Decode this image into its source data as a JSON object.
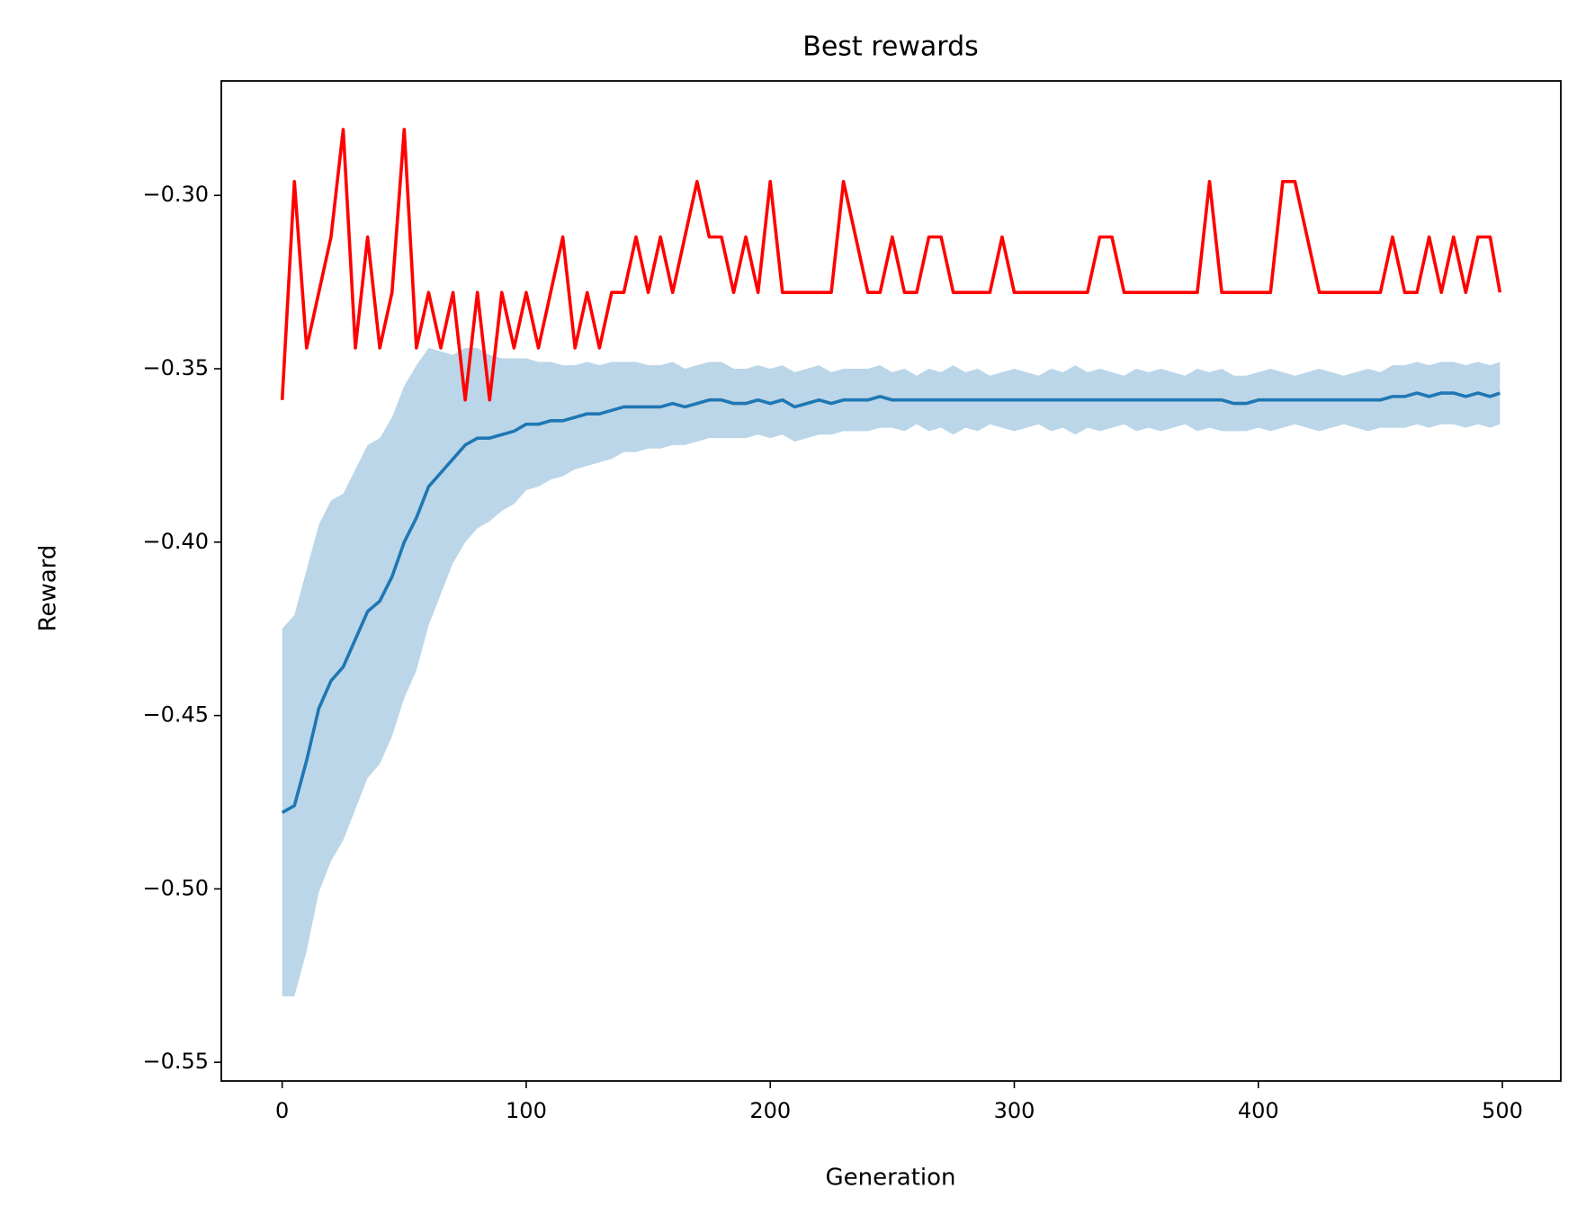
{
  "chart_data": {
    "type": "line",
    "title": "Best rewards",
    "x_label": "Generation",
    "y_label": "Reward",
    "xlim": [
      -24.95,
      523.95
    ],
    "ylim": [
      -0.5554,
      -0.267
    ],
    "xticks": [
      0,
      100,
      200,
      300,
      400,
      500
    ],
    "yticks": [
      {
        "value": -0.55,
        "label": "−0.55"
      },
      {
        "value": -0.5,
        "label": "−0.50"
      },
      {
        "value": -0.45,
        "label": "−0.45"
      },
      {
        "value": -0.4,
        "label": "−0.40"
      },
      {
        "value": -0.35,
        "label": "−0.35"
      },
      {
        "value": -0.3,
        "label": "−0.30"
      }
    ],
    "grid": false,
    "x": [
      0,
      5,
      10,
      15,
      20,
      25,
      30,
      35,
      40,
      45,
      50,
      55,
      60,
      65,
      70,
      75,
      80,
      85,
      90,
      95,
      100,
      105,
      110,
      115,
      120,
      125,
      130,
      135,
      140,
      145,
      150,
      155,
      160,
      165,
      170,
      175,
      180,
      185,
      190,
      195,
      200,
      205,
      210,
      215,
      220,
      225,
      230,
      235,
      240,
      245,
      250,
      255,
      260,
      265,
      270,
      275,
      280,
      285,
      290,
      295,
      300,
      305,
      310,
      315,
      320,
      325,
      330,
      335,
      340,
      345,
      350,
      355,
      360,
      365,
      370,
      375,
      380,
      385,
      390,
      395,
      400,
      405,
      410,
      415,
      420,
      425,
      430,
      435,
      440,
      445,
      450,
      455,
      460,
      465,
      470,
      475,
      480,
      485,
      490,
      495,
      499
    ],
    "series": [
      {
        "color": "#ff0000",
        "values": [
          -0.359,
          -0.296,
          -0.344,
          -0.328,
          -0.312,
          -0.281,
          -0.344,
          -0.312,
          -0.344,
          -0.328,
          -0.281,
          -0.344,
          -0.328,
          -0.344,
          -0.328,
          -0.359,
          -0.328,
          -0.359,
          -0.328,
          -0.344,
          -0.328,
          -0.344,
          -0.328,
          -0.312,
          -0.344,
          -0.328,
          -0.344,
          -0.328,
          -0.328,
          -0.312,
          -0.328,
          -0.312,
          -0.328,
          -0.312,
          -0.296,
          -0.312,
          -0.312,
          -0.328,
          -0.312,
          -0.328,
          -0.296,
          -0.328,
          -0.328,
          -0.328,
          -0.328,
          -0.328,
          -0.296,
          -0.312,
          -0.328,
          -0.328,
          -0.312,
          -0.328,
          -0.328,
          -0.312,
          -0.312,
          -0.328,
          -0.328,
          -0.328,
          -0.328,
          -0.312,
          -0.328,
          -0.328,
          -0.328,
          -0.328,
          -0.328,
          -0.328,
          -0.328,
          -0.312,
          -0.312,
          -0.328,
          -0.328,
          -0.328,
          -0.328,
          -0.328,
          -0.328,
          -0.328,
          -0.296,
          -0.328,
          -0.328,
          -0.328,
          -0.328,
          -0.328,
          -0.296,
          -0.296,
          -0.312,
          -0.328,
          -0.328,
          -0.328,
          -0.328,
          -0.328,
          -0.328,
          -0.312,
          -0.328,
          -0.328,
          -0.312,
          -0.328,
          -0.312,
          -0.328,
          -0.312,
          -0.312,
          -0.328
        ]
      },
      {
        "color": "#1f77b4",
        "band_opacity": 0.3,
        "values": [
          -0.478,
          -0.476,
          -0.463,
          -0.448,
          -0.44,
          -0.436,
          -0.428,
          -0.42,
          -0.417,
          -0.41,
          -0.4,
          -0.393,
          -0.384,
          -0.38,
          -0.376,
          -0.372,
          -0.37,
          -0.37,
          -0.369,
          -0.368,
          -0.366,
          -0.366,
          -0.365,
          -0.365,
          -0.364,
          -0.363,
          -0.363,
          -0.362,
          -0.361,
          -0.361,
          -0.361,
          -0.361,
          -0.36,
          -0.361,
          -0.36,
          -0.359,
          -0.359,
          -0.36,
          -0.36,
          -0.359,
          -0.36,
          -0.359,
          -0.361,
          -0.36,
          -0.359,
          -0.36,
          -0.359,
          -0.359,
          -0.359,
          -0.358,
          -0.359,
          -0.359,
          -0.359,
          -0.359,
          -0.359,
          -0.359,
          -0.359,
          -0.359,
          -0.359,
          -0.359,
          -0.359,
          -0.359,
          -0.359,
          -0.359,
          -0.359,
          -0.359,
          -0.359,
          -0.359,
          -0.359,
          -0.359,
          -0.359,
          -0.359,
          -0.359,
          -0.359,
          -0.359,
          -0.359,
          -0.359,
          -0.359,
          -0.36,
          -0.36,
          -0.359,
          -0.359,
          -0.359,
          -0.359,
          -0.359,
          -0.359,
          -0.359,
          -0.359,
          -0.359,
          -0.359,
          -0.359,
          -0.358,
          -0.358,
          -0.357,
          -0.358,
          -0.357,
          -0.357,
          -0.358,
          -0.357,
          -0.358,
          -0.357
        ],
        "upper": [
          -0.425,
          -0.421,
          -0.408,
          -0.395,
          -0.388,
          -0.386,
          -0.379,
          -0.372,
          -0.37,
          -0.364,
          -0.355,
          -0.349,
          -0.344,
          -0.345,
          -0.346,
          -0.344,
          -0.344,
          -0.346,
          -0.347,
          -0.347,
          -0.347,
          -0.348,
          -0.348,
          -0.349,
          -0.349,
          -0.348,
          -0.349,
          -0.348,
          -0.348,
          -0.348,
          -0.349,
          -0.349,
          -0.348,
          -0.35,
          -0.349,
          -0.348,
          -0.348,
          -0.35,
          -0.35,
          -0.349,
          -0.35,
          -0.349,
          -0.351,
          -0.35,
          -0.349,
          -0.351,
          -0.35,
          -0.35,
          -0.35,
          -0.349,
          -0.351,
          -0.35,
          -0.352,
          -0.35,
          -0.351,
          -0.349,
          -0.351,
          -0.35,
          -0.352,
          -0.351,
          -0.35,
          -0.351,
          -0.352,
          -0.35,
          -0.351,
          -0.349,
          -0.351,
          -0.35,
          -0.351,
          -0.352,
          -0.35,
          -0.351,
          -0.35,
          -0.351,
          -0.352,
          -0.35,
          -0.351,
          -0.35,
          -0.352,
          -0.352,
          -0.351,
          -0.35,
          -0.351,
          -0.352,
          -0.351,
          -0.35,
          -0.351,
          -0.352,
          -0.351,
          -0.35,
          -0.351,
          -0.349,
          -0.349,
          -0.348,
          -0.349,
          -0.348,
          -0.348,
          -0.349,
          -0.348,
          -0.349,
          -0.348
        ],
        "lower": [
          -0.531,
          -0.531,
          -0.518,
          -0.501,
          -0.492,
          -0.486,
          -0.477,
          -0.468,
          -0.464,
          -0.456,
          -0.445,
          -0.437,
          -0.424,
          -0.415,
          -0.406,
          -0.4,
          -0.396,
          -0.394,
          -0.391,
          -0.389,
          -0.385,
          -0.384,
          -0.382,
          -0.381,
          -0.379,
          -0.378,
          -0.377,
          -0.376,
          -0.374,
          -0.374,
          -0.373,
          -0.373,
          -0.372,
          -0.372,
          -0.371,
          -0.37,
          -0.37,
          -0.37,
          -0.37,
          -0.369,
          -0.37,
          -0.369,
          -0.371,
          -0.37,
          -0.369,
          -0.369,
          -0.368,
          -0.368,
          -0.368,
          -0.367,
          -0.367,
          -0.368,
          -0.366,
          -0.368,
          -0.367,
          -0.369,
          -0.367,
          -0.368,
          -0.366,
          -0.367,
          -0.368,
          -0.367,
          -0.366,
          -0.368,
          -0.367,
          -0.369,
          -0.367,
          -0.368,
          -0.367,
          -0.366,
          -0.368,
          -0.367,
          -0.368,
          -0.367,
          -0.366,
          -0.368,
          -0.367,
          -0.368,
          -0.368,
          -0.368,
          -0.367,
          -0.368,
          -0.367,
          -0.366,
          -0.367,
          -0.368,
          -0.367,
          -0.366,
          -0.367,
          -0.368,
          -0.367,
          -0.367,
          -0.367,
          -0.366,
          -0.367,
          -0.366,
          -0.366,
          -0.367,
          -0.366,
          -0.367,
          -0.366
        ]
      }
    ]
  }
}
